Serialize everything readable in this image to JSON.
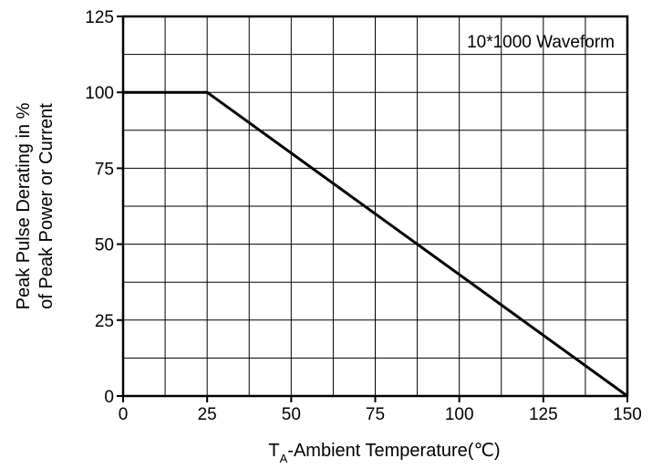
{
  "chart_data": {
    "type": "line",
    "title": "",
    "xlabel_main": "T",
    "xlabel_sub": "A",
    "xlabel_rest": "-Ambient Temperature(℃)",
    "ylabel_lines": [
      "Peak Pulse Derating in %",
      "of Peak Power or Current"
    ],
    "annotation": "10*1000 Waveform",
    "xlim": [
      0,
      150
    ],
    "ylim": [
      0,
      125
    ],
    "x_ticks": [
      0,
      25,
      50,
      75,
      100,
      125,
      150
    ],
    "y_ticks": [
      0,
      25,
      50,
      75,
      100,
      125
    ],
    "x_tick_labels": [
      "0",
      "25",
      "50",
      "75",
      "100",
      "125",
      "150"
    ],
    "y_tick_labels": [
      "0",
      "25",
      "50",
      "75",
      "100",
      "125"
    ],
    "x_grid": [
      0,
      12.5,
      25,
      37.5,
      50,
      62.5,
      75,
      87.5,
      100,
      112.5,
      125,
      137.5,
      150
    ],
    "y_grid": [
      0,
      12.5,
      25,
      37.5,
      50,
      62.5,
      75,
      87.5,
      100,
      112.5,
      125
    ],
    "grid": true,
    "series": [
      {
        "x": [
          0,
          25,
          150
        ],
        "y": [
          100,
          100,
          0
        ]
      }
    ],
    "colors": {
      "line": "#000000",
      "grid": "#000000",
      "background": "#ffffff"
    }
  }
}
